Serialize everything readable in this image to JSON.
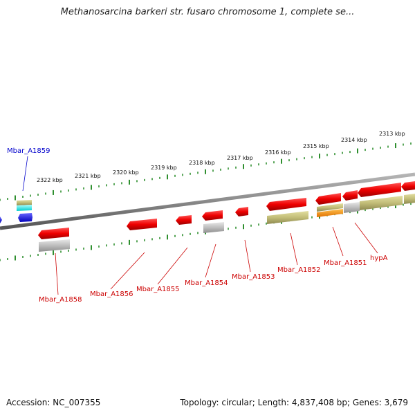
{
  "title": "Methanosarcina barkeri str. fusaro chromosome 1, complete se...",
  "footer": {
    "accession": "Accession: NC_007355",
    "summary": "Topology: circular; Length: 4,837,408 bp; Genes: 3,679"
  },
  "colors": {
    "tick": "#2f8f2f",
    "backbone": "#8a8a8a",
    "gene_label": "#cc0000",
    "blue_label": "#0000cc"
  },
  "scale_labels": [
    "2322 kbp",
    "2321 kbp",
    "2320 kbp",
    "2319 kbp",
    "2318 kbp",
    "2317 kbp",
    "2316 kbp",
    "2315 kbp",
    "2314 kbp",
    "2313 kbp"
  ],
  "gene_labels": [
    "Mbar_A1859",
    "Mbar_A1858",
    "Mbar_A1856",
    "Mbar_A1855",
    "Mbar_A1854",
    "Mbar_A1853",
    "Mbar_A1852",
    "Mbar_A1851",
    "hypA"
  ]
}
